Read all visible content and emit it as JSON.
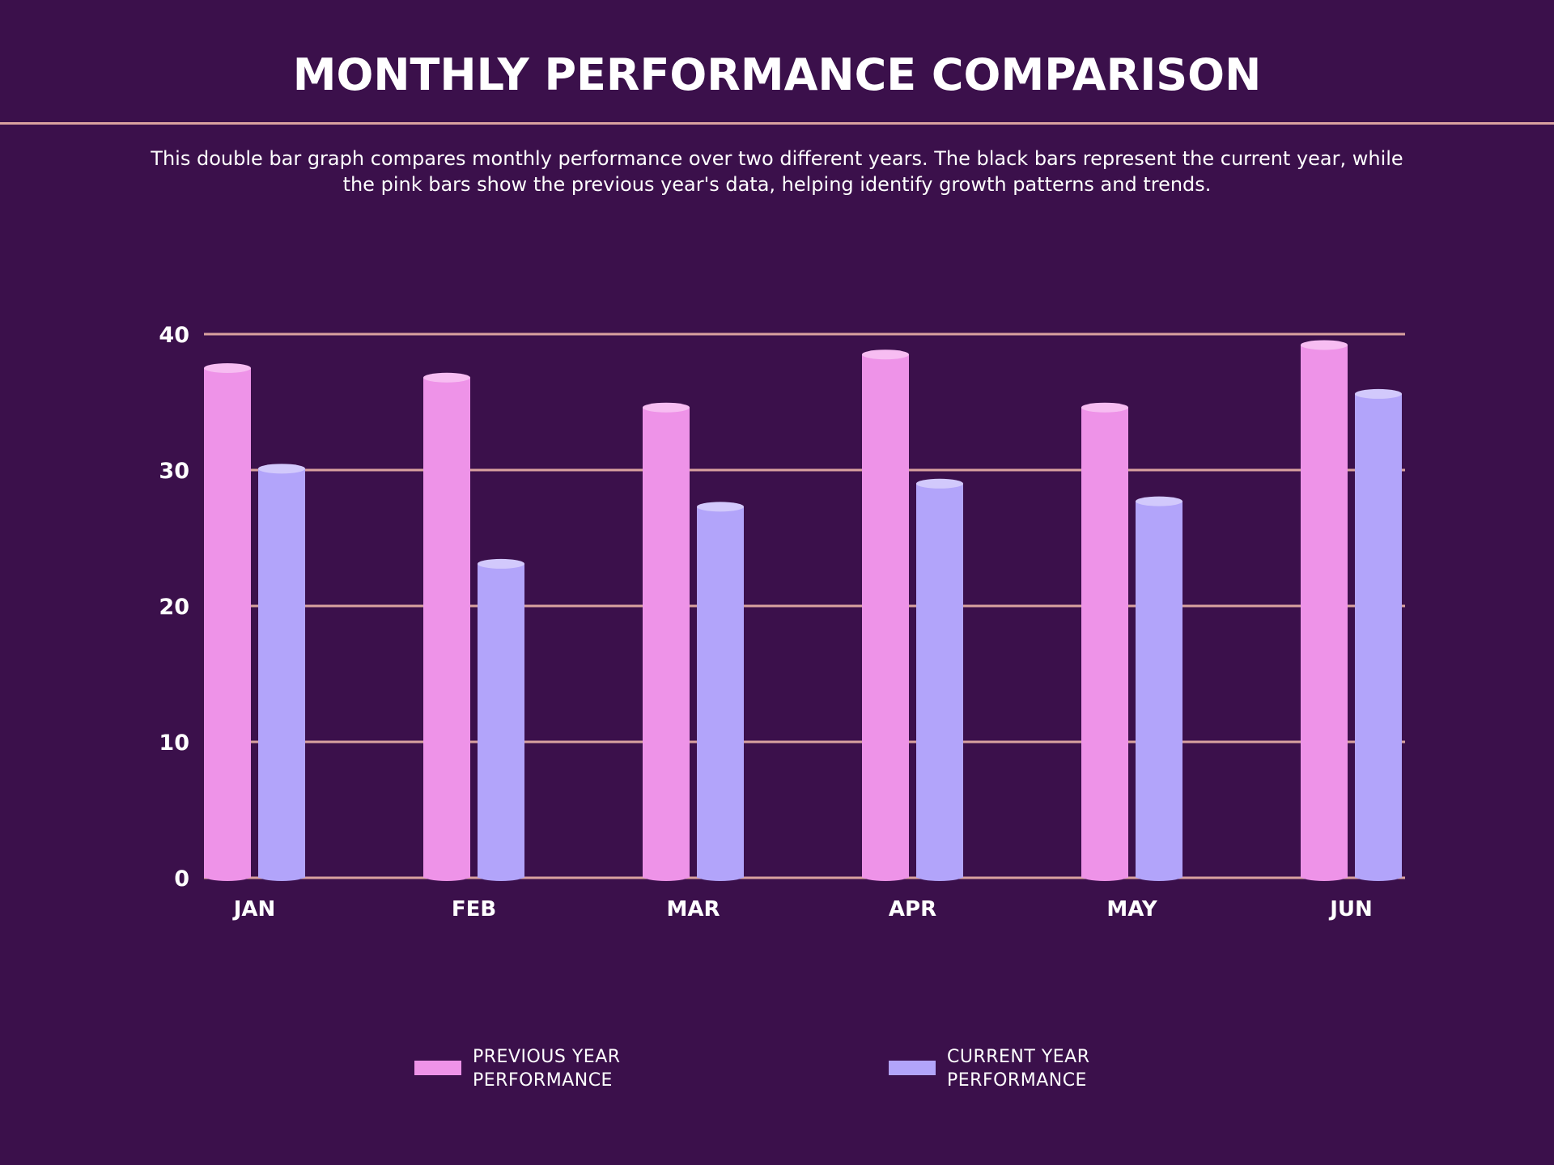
{
  "title": "MONTHLY PERFORMANCE COMPARISON",
  "description": "This double bar graph compares monthly performance over two different years. The black bars represent the current year, while the pink bars show the previous year's data, helping identify growth patterns and trends.",
  "colors": {
    "background": "#3b104b",
    "gridline": "#d9a29f",
    "previous_year": "#ee93e8",
    "current_year": "#b2a4fa"
  },
  "chart_data": {
    "type": "bar",
    "categories": [
      "JAN",
      "FEB",
      "MAR",
      "APR",
      "MAY",
      "JUN"
    ],
    "series": [
      {
        "name": "PREVIOUS YEAR PERFORMANCE",
        "values": [
          37.5,
          36.8,
          34.6,
          38.5,
          34.6,
          39.2
        ]
      },
      {
        "name": "CURRENT YEAR PERFORMANCE",
        "values": [
          30.1,
          23.1,
          27.3,
          29.0,
          27.7,
          35.6
        ]
      }
    ],
    "title": "MONTHLY PERFORMANCE COMPARISON",
    "xlabel": "",
    "ylabel": "",
    "ylim": [
      0,
      40
    ],
    "yticks": [
      "0",
      "10",
      "20",
      "30",
      "40"
    ],
    "grid": true,
    "legend_position": "bottom"
  }
}
